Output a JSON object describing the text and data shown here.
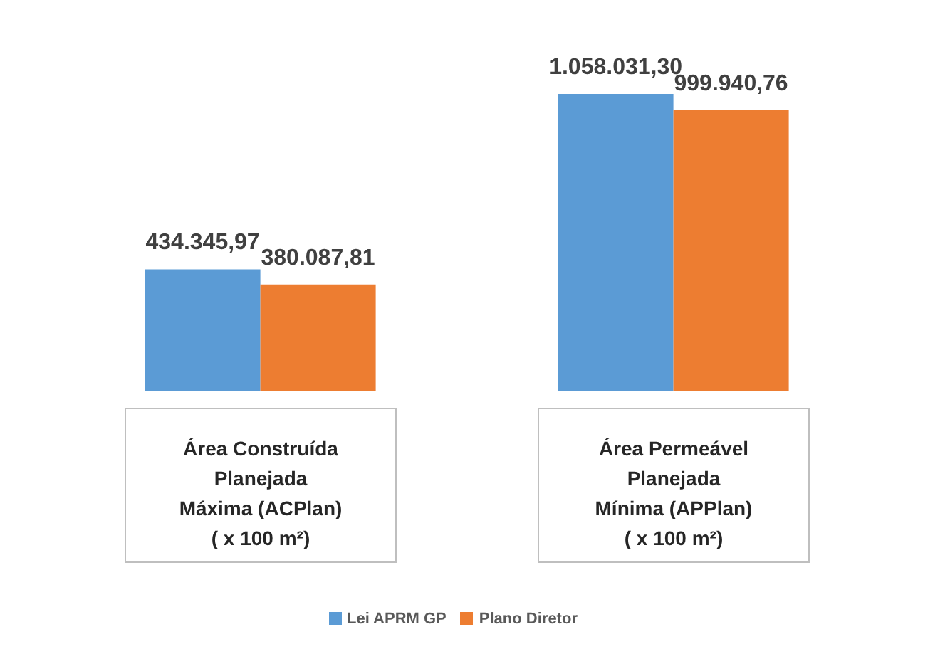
{
  "chart_data": {
    "type": "bar",
    "categories": [
      "Área Construída\nPlanejada\nMáxima (ACPlan)\n( x 100 m²)",
      "Área Permeável\nPlanejada\nMínima (APPlan)\n( x 100 m²)"
    ],
    "series": [
      {
        "name": "Lei APRM GP",
        "color": "#5b9bd5",
        "values": [
          434345.97,
          1058031.3
        ],
        "value_labels": [
          "434.345,97",
          "1.058.031,30"
        ]
      },
      {
        "name": "Plano Diretor",
        "color": "#ed7d31",
        "values": [
          380087.81,
          999940.76
        ],
        "value_labels": [
          "380.087,81",
          "999.940,76"
        ]
      }
    ],
    "legend": "bottom",
    "tick_labels": "x"
  }
}
